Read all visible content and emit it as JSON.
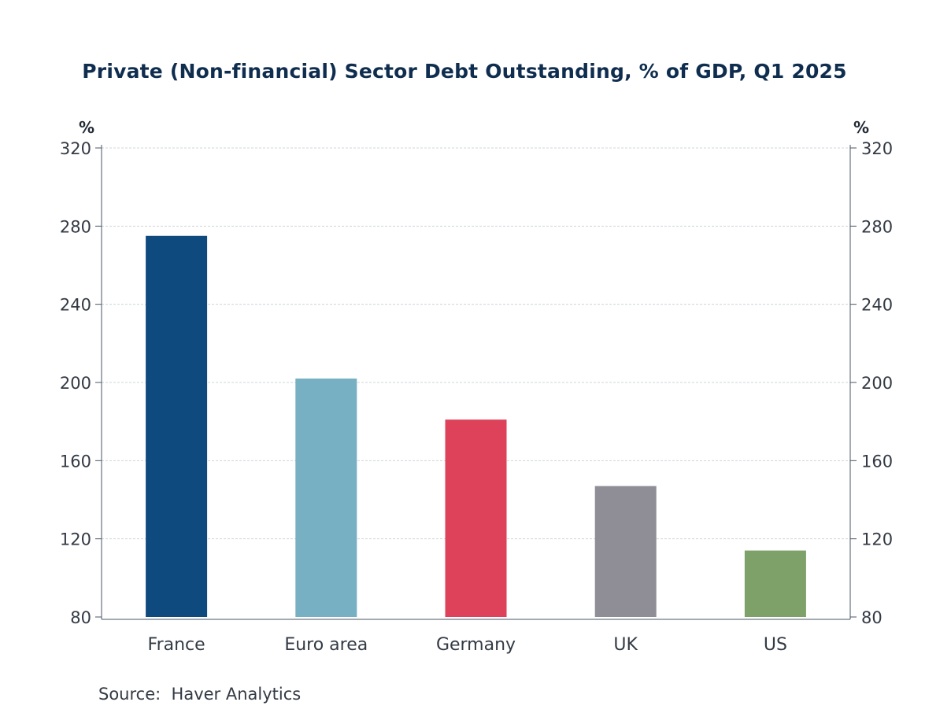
{
  "chart_data": {
    "type": "bar",
    "title": "Private (Non-financial) Sector Debt Outstanding, % of GDP, Q1 2025",
    "ylabel_left": "%",
    "ylabel_right": "%",
    "xlabel": "",
    "categories": [
      "France",
      "Euro area",
      "Germany",
      "UK",
      "US"
    ],
    "values": [
      275,
      202,
      181,
      147,
      114
    ],
    "colors": [
      "#0f4a7e",
      "#77afc3",
      "#de415a",
      "#8f8e96",
      "#7ea069"
    ],
    "ylim": [
      80,
      320
    ],
    "yticks": [
      80,
      120,
      160,
      200,
      240,
      280,
      320
    ],
    "grid": true,
    "dual_axis_mirrored": true,
    "source": "Source:  Haver Analytics"
  }
}
